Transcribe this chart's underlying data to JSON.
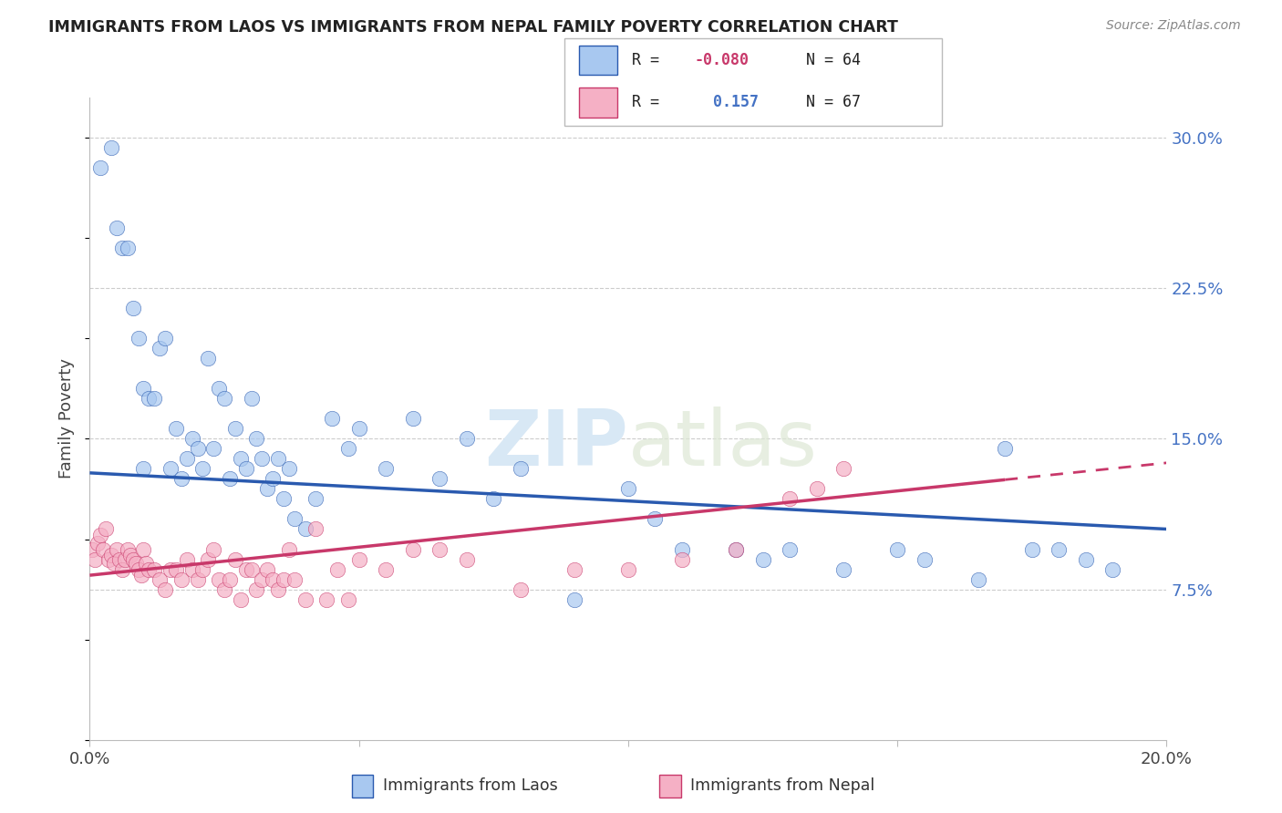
{
  "title": "IMMIGRANTS FROM LAOS VS IMMIGRANTS FROM NEPAL FAMILY POVERTY CORRELATION CHART",
  "source": "Source: ZipAtlas.com",
  "ylabel": "Family Poverty",
  "R_laos": -0.08,
  "N_laos": 64,
  "R_nepal": 0.157,
  "N_nepal": 67,
  "color_laos": "#A8C8F0",
  "color_nepal": "#F5B0C5",
  "line_color_laos": "#2A5AAF",
  "line_color_nepal": "#C8386A",
  "watermark_zip": "ZIP",
  "watermark_atlas": "atlas",
  "xlim": [
    0,
    20
  ],
  "ylim": [
    0,
    32
  ],
  "ytick_vals": [
    7.5,
    15.0,
    22.5,
    30.0
  ],
  "ytick_labels": [
    "7.5%",
    "15.0%",
    "22.5%",
    "30.0%"
  ],
  "laos_x": [
    0.2,
    0.4,
    0.5,
    0.6,
    0.7,
    0.8,
    0.9,
    1.0,
    1.0,
    1.1,
    1.2,
    1.3,
    1.4,
    1.5,
    1.6,
    1.7,
    1.8,
    1.9,
    2.0,
    2.1,
    2.2,
    2.3,
    2.4,
    2.5,
    2.6,
    2.7,
    2.8,
    2.9,
    3.0,
    3.1,
    3.2,
    3.3,
    3.4,
    3.5,
    3.6,
    3.7,
    3.8,
    4.0,
    4.2,
    4.5,
    4.8,
    5.0,
    5.5,
    6.0,
    6.5,
    7.0,
    7.5,
    8.0,
    9.0,
    10.0,
    10.5,
    11.0,
    12.0,
    12.5,
    13.0,
    14.0,
    15.0,
    15.5,
    16.5,
    17.0,
    17.5,
    18.0,
    18.5,
    19.0
  ],
  "laos_y": [
    28.5,
    29.5,
    25.5,
    24.5,
    24.5,
    21.5,
    20.0,
    17.5,
    13.5,
    17.0,
    17.0,
    19.5,
    20.0,
    13.5,
    15.5,
    13.0,
    14.0,
    15.0,
    14.5,
    13.5,
    19.0,
    14.5,
    17.5,
    17.0,
    13.0,
    15.5,
    14.0,
    13.5,
    17.0,
    15.0,
    14.0,
    12.5,
    13.0,
    14.0,
    12.0,
    13.5,
    11.0,
    10.5,
    12.0,
    16.0,
    14.5,
    15.5,
    13.5,
    16.0,
    13.0,
    15.0,
    12.0,
    13.5,
    7.0,
    12.5,
    11.0,
    9.5,
    9.5,
    9.0,
    9.5,
    8.5,
    9.5,
    9.0,
    8.0,
    14.5,
    9.5,
    9.5,
    9.0,
    8.5
  ],
  "nepal_x": [
    0.05,
    0.1,
    0.15,
    0.2,
    0.25,
    0.3,
    0.35,
    0.4,
    0.45,
    0.5,
    0.55,
    0.6,
    0.65,
    0.7,
    0.75,
    0.8,
    0.85,
    0.9,
    0.95,
    1.0,
    1.05,
    1.1,
    1.2,
    1.3,
    1.4,
    1.5,
    1.6,
    1.7,
    1.8,
    1.9,
    2.0,
    2.1,
    2.2,
    2.3,
    2.4,
    2.5,
    2.6,
    2.7,
    2.8,
    2.9,
    3.0,
    3.1,
    3.2,
    3.3,
    3.4,
    3.5,
    3.6,
    3.7,
    3.8,
    4.0,
    4.2,
    4.4,
    4.6,
    4.8,
    5.0,
    5.5,
    6.0,
    6.5,
    7.0,
    8.0,
    9.0,
    10.0,
    11.0,
    12.0,
    13.0,
    13.5,
    14.0
  ],
  "nepal_y": [
    9.5,
    9.0,
    9.8,
    10.2,
    9.5,
    10.5,
    9.0,
    9.2,
    8.8,
    9.5,
    9.0,
    8.5,
    9.0,
    9.5,
    9.2,
    9.0,
    8.8,
    8.5,
    8.2,
    9.5,
    8.8,
    8.5,
    8.5,
    8.0,
    7.5,
    8.5,
    8.5,
    8.0,
    9.0,
    8.5,
    8.0,
    8.5,
    9.0,
    9.5,
    8.0,
    7.5,
    8.0,
    9.0,
    7.0,
    8.5,
    8.5,
    7.5,
    8.0,
    8.5,
    8.0,
    7.5,
    8.0,
    9.5,
    8.0,
    7.0,
    10.5,
    7.0,
    8.5,
    7.0,
    9.0,
    8.5,
    9.5,
    9.5,
    9.0,
    7.5,
    8.5,
    8.5,
    9.0,
    9.5,
    12.0,
    12.5,
    13.5
  ],
  "laos_line_x": [
    0,
    20
  ],
  "laos_line_y": [
    13.3,
    10.5
  ],
  "nepal_line_x": [
    0,
    20
  ],
  "nepal_line_y": [
    8.2,
    13.8
  ],
  "nepal_dash_start_x": 17.0
}
